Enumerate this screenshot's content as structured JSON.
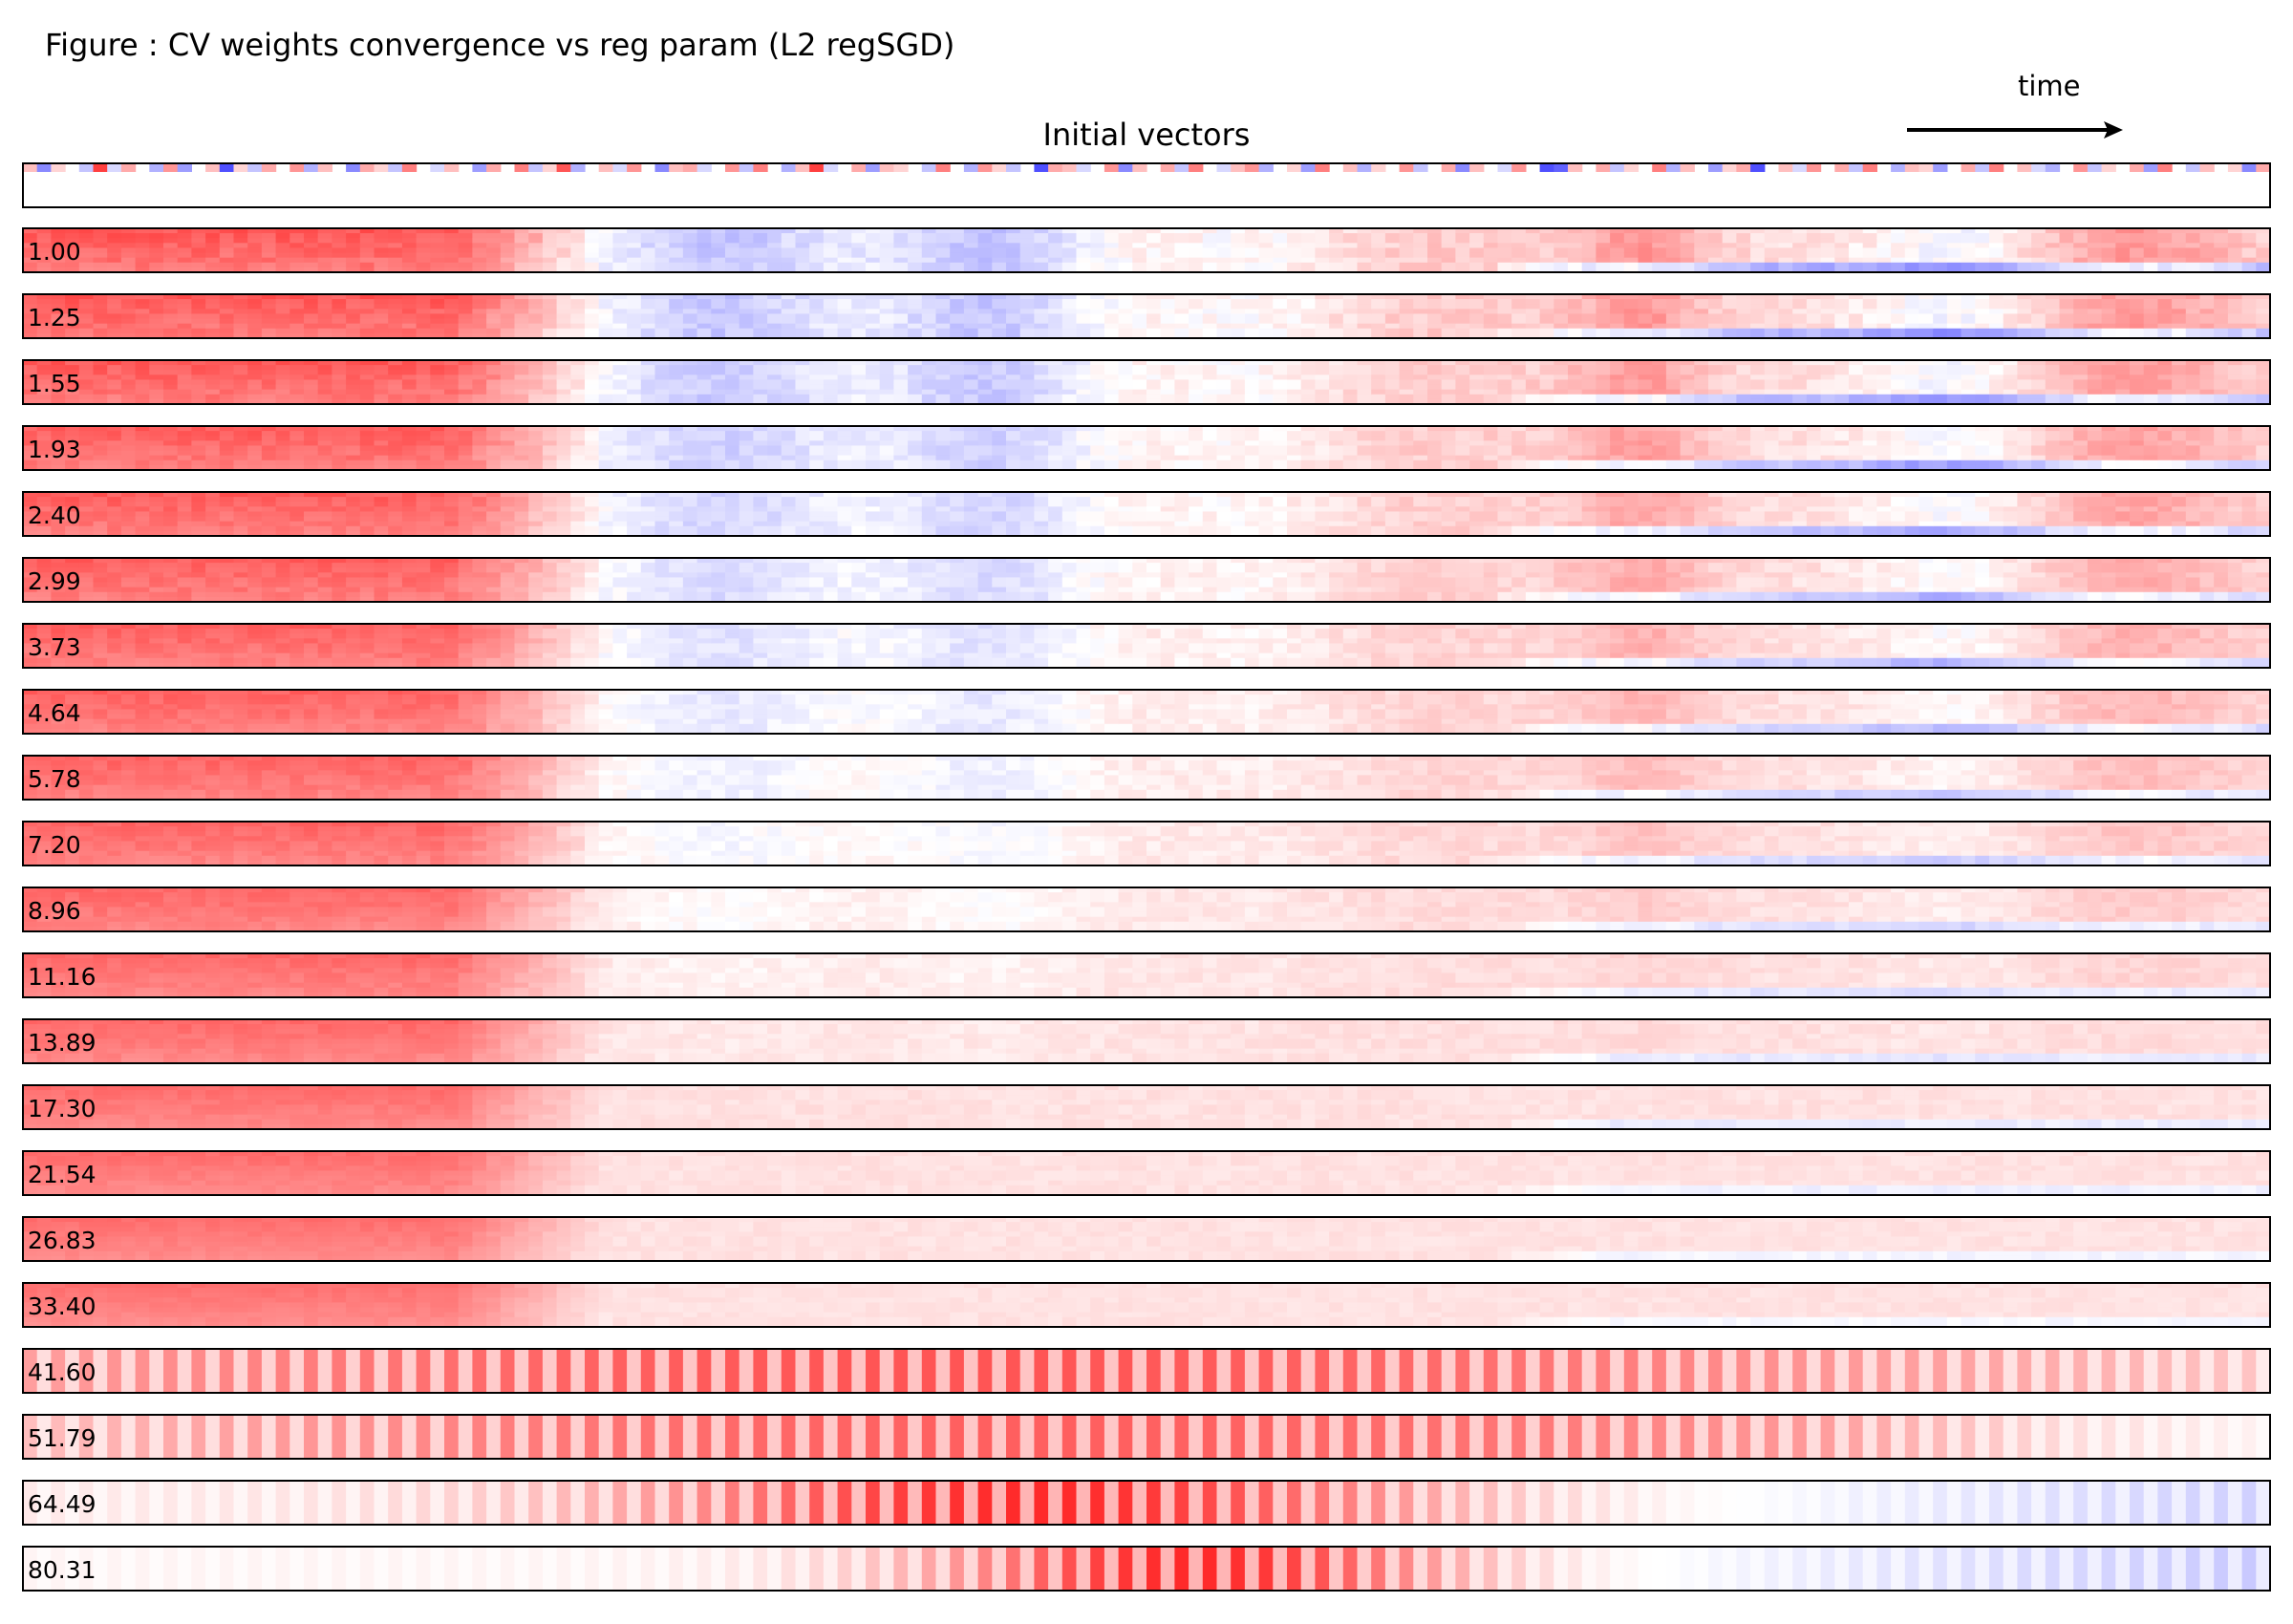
{
  "figure": {
    "title": "Figure : CV weights convergence vs reg param (L2 regSGD)",
    "initial_title": "Initial vectors",
    "time_label": "time"
  },
  "colors": {
    "negative": "#3b3bff",
    "zero": "#ffffff",
    "positive": "#ff2a2a",
    "frame": "#000000"
  },
  "chart_data": {
    "type": "heatmap",
    "colormap": "bwr",
    "value_range": [
      -1,
      1
    ],
    "columns": 160,
    "initial_vectors": {
      "label": "Initial vectors",
      "values": [
        0.3,
        -0.6,
        0.2,
        0.0,
        -0.3,
        0.9,
        -0.2,
        0.4,
        0.0,
        -0.4,
        0.5,
        -0.5,
        0.0,
        0.3,
        -0.9,
        0.2,
        -0.3,
        0.4,
        0.0,
        0.5,
        -0.4,
        0.3,
        0.0,
        -0.6,
        0.4,
        0.2,
        -0.3,
        0.6,
        0.0,
        -0.2,
        0.3,
        0.0,
        -0.5,
        0.4,
        0.0,
        0.6,
        -0.3,
        0.2,
        0.8,
        -0.4,
        0.0,
        0.3,
        -0.2,
        0.5,
        0.0,
        -0.6,
        0.3,
        0.4,
        -0.2,
        0.0,
        0.5,
        -0.3,
        0.6,
        0.0,
        -0.4,
        0.3,
        0.9,
        -0.2,
        0.0,
        0.4,
        -0.5,
        0.3,
        0.2,
        0.0,
        -0.3,
        0.6,
        0.0,
        -0.4,
        0.5,
        0.2,
        -0.3,
        0.0,
        -0.9,
        0.4,
        0.3,
        -0.2,
        0.0,
        0.5,
        -0.6,
        0.3,
        0.0,
        0.4,
        -0.3,
        0.6,
        0.0,
        -0.2,
        0.3,
        0.5,
        -0.4,
        0.0,
        0.2,
        -0.5,
        0.6,
        0.0,
        0.3,
        -0.4,
        0.2,
        0.0,
        0.5,
        -0.3,
        0.0,
        0.4,
        -0.6,
        0.3,
        0.0,
        -0.2,
        0.5,
        0.0,
        -0.9,
        -0.8,
        0.3,
        0.0,
        0.4,
        -0.3,
        0.2,
        0.0,
        0.6,
        -0.4,
        0.3,
        0.0,
        -0.5,
        0.2,
        0.4,
        -0.9,
        0.0,
        0.3,
        -0.2,
        0.5,
        0.0,
        0.4,
        -0.3,
        0.6,
        0.0,
        -0.4,
        0.3,
        0.2,
        -0.5,
        0.0,
        0.4,
        -0.3,
        0.6,
        0.0,
        0.3,
        -0.2,
        -0.4,
        0.0,
        0.5,
        -0.3,
        0.2,
        0.0,
        0.4,
        -0.5,
        0.6,
        0.0,
        -0.3,
        0.3,
        0.0,
        0.2,
        -0.6,
        0.4
      ]
    },
    "rows": [
      {
        "label": "1.00",
        "mode": "trajectory",
        "reg": 1.0
      },
      {
        "label": "1.25",
        "mode": "trajectory",
        "reg": 1.25
      },
      {
        "label": "1.55",
        "mode": "trajectory",
        "reg": 1.55
      },
      {
        "label": "1.93",
        "mode": "trajectory",
        "reg": 1.93
      },
      {
        "label": "2.40",
        "mode": "trajectory",
        "reg": 2.4
      },
      {
        "label": "2.99",
        "mode": "trajectory",
        "reg": 2.99
      },
      {
        "label": "3.73",
        "mode": "trajectory",
        "reg": 3.73
      },
      {
        "label": "4.64",
        "mode": "trajectory",
        "reg": 4.64
      },
      {
        "label": "5.78",
        "mode": "trajectory",
        "reg": 5.78
      },
      {
        "label": "7.20",
        "mode": "trajectory",
        "reg": 7.2
      },
      {
        "label": "8.96",
        "mode": "trajectory",
        "reg": 8.96
      },
      {
        "label": "11.16",
        "mode": "trajectory",
        "reg": 11.16
      },
      {
        "label": "13.89",
        "mode": "trajectory",
        "reg": 13.89
      },
      {
        "label": "17.30",
        "mode": "trajectory",
        "reg": 17.3
      },
      {
        "label": "21.54",
        "mode": "trajectory",
        "reg": 21.54
      },
      {
        "label": "26.83",
        "mode": "trajectory",
        "reg": 26.83
      },
      {
        "label": "33.40",
        "mode": "trajectory",
        "reg": 33.4
      },
      {
        "label": "41.60",
        "mode": "oscillating",
        "reg": 41.6
      },
      {
        "label": "51.79",
        "mode": "oscillating",
        "reg": 51.79
      },
      {
        "label": "64.49",
        "mode": "oscillating",
        "reg": 64.49
      },
      {
        "label": "80.31",
        "mode": "oscillating",
        "reg": 80.31
      }
    ],
    "time_direction": "left-to-right",
    "grid": false
  }
}
